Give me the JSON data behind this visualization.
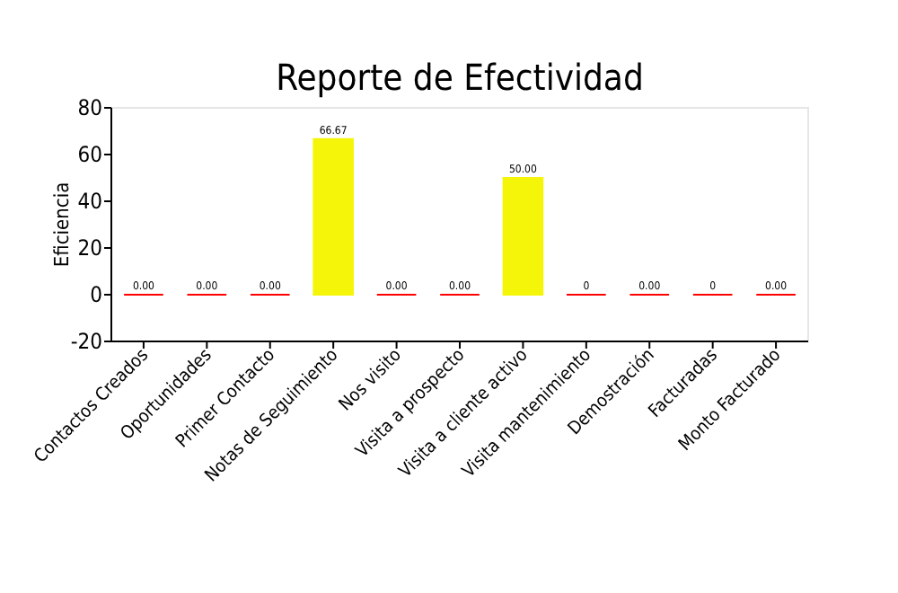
{
  "chart_data": {
    "type": "bar",
    "title": "Reporte de Efectividad",
    "ylabel": "Eficiencia",
    "categories": [
      "Contactos Creados",
      "Oportunidades",
      "Primer Contacto",
      "Notas de Seguimiento",
      "Nos visito",
      "Visita a prospecto",
      "Visita a cliente activo",
      "Visita mantenimiento",
      "Demostración",
      "Facturadas",
      "Monto Facturado"
    ],
    "values": [
      0,
      0,
      0,
      66.67,
      0,
      0,
      50,
      0,
      0,
      0,
      0
    ],
    "colors": [
      "#ff0000",
      "#ff0000",
      "#ff0000",
      "#f5f50a",
      "#ff0000",
      "#ff0000",
      "#f5f50a",
      "#ff0000",
      "#ff0000",
      "#ff0000",
      "#ff0000"
    ],
    "value_labels": [
      "0.00",
      "0.00",
      "0.00",
      "66.67",
      "0.00",
      "0.00",
      "50.00",
      "0",
      "0.00",
      "0",
      "0.00"
    ],
    "ylim": [
      -20,
      80
    ],
    "yticks": [
      -20,
      0,
      20,
      40,
      60,
      80
    ],
    "grid": false
  }
}
